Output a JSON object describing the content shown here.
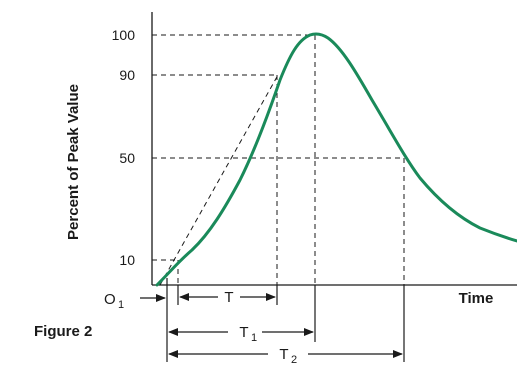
{
  "figure": {
    "caption": "Figure 2",
    "y_axis_label": "Percent of Peak Value",
    "x_axis_label": "Time",
    "y_ticks": [
      "100",
      "90",
      "50",
      "10"
    ],
    "origin_label": "O",
    "origin_subscript": "1",
    "dimension_T": "T",
    "dimension_T1": "T",
    "dimension_T1_subscript": "1",
    "dimension_T2": "T",
    "dimension_T2_subscript": "2",
    "curve_color": "#1a8a5a"
  }
}
